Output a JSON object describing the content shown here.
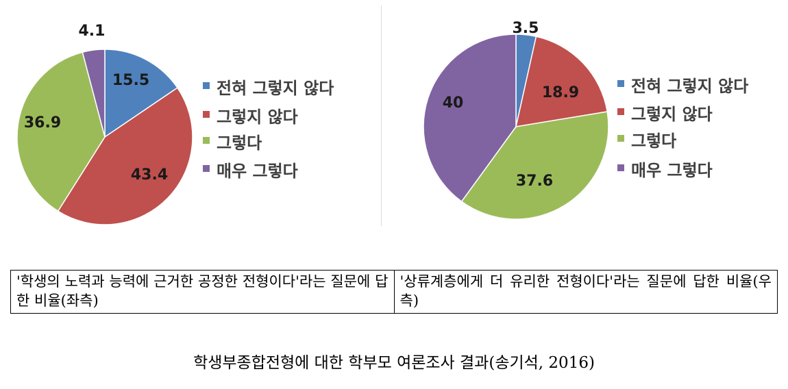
{
  "chart_data": [
    {
      "type": "pie",
      "legend": [
        "전혀 그렇지 않다",
        "그렇지 않다",
        "그렇다",
        "매우 그렇다"
      ],
      "values": [
        15.5,
        43.4,
        36.9,
        4.1
      ],
      "value_labels": [
        "15.5",
        "43.4",
        "36.9",
        "4.1"
      ],
      "colors": [
        "#4f81bd",
        "#c0504d",
        "#9bbb59",
        "#8064a2"
      ],
      "legend_placement": "right"
    },
    {
      "type": "pie",
      "legend": [
        "전혀 그렇지 않다",
        "그렇지 않다",
        "그렇다",
        "매우 그렇다"
      ],
      "values": [
        3.5,
        18.9,
        37.6,
        40
      ],
      "value_labels": [
        "3.5",
        "18.9",
        "37.6",
        "40"
      ],
      "colors": [
        "#4f81bd",
        "#c0504d",
        "#9bbb59",
        "#8064a2"
      ],
      "legend_placement": "right"
    }
  ],
  "captions": {
    "left": "'학생의 노력과 능력에 근거한 공정한 전형이다'라는 질문에 답한 비율(좌측)",
    "right": "'상류계층에게 더 유리한 전형이다'라는 질문에 답한 비율(우측)"
  },
  "figure_caption": "학생부종합전형에 대한 학부모 여론조사 결과(송기석, 2016)"
}
